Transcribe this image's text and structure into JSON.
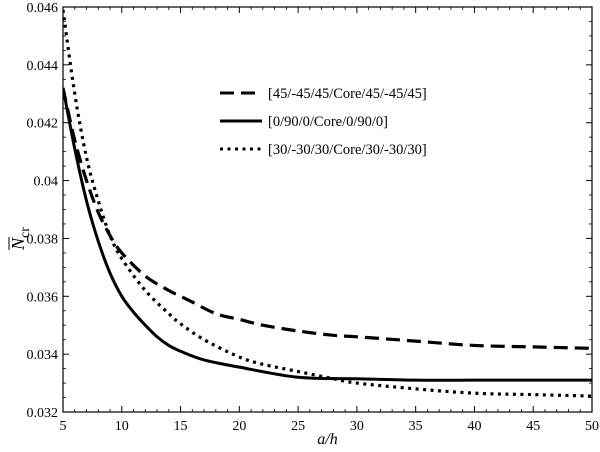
{
  "chart_data": {
    "type": "line",
    "title": "",
    "xlabel": "a/h",
    "ylabel_main": "N",
    "ylabel_sub": "cr",
    "xlim": [
      5,
      50
    ],
    "ylim": [
      0.032,
      0.046
    ],
    "xticks": [
      5,
      10,
      15,
      20,
      25,
      30,
      35,
      40,
      45,
      50
    ],
    "yticks": [
      0.032,
      0.034,
      0.036,
      0.038,
      0.04,
      0.042,
      0.044,
      0.046
    ],
    "ytick_labels": [
      "0.032",
      "0.034",
      "0.036",
      "0.038",
      "0.04",
      "0.042",
      "0.044",
      "0.046"
    ],
    "grid": false,
    "legend_position": "upper-right",
    "series": [
      {
        "name": "[45/-45/45/Core/45/-45/45]",
        "style": "dashed",
        "color": "#000000",
        "x": [
          5,
          6,
          7,
          8,
          9,
          10,
          12,
          14,
          15,
          16,
          18,
          20,
          22,
          25,
          28,
          30,
          35,
          40,
          45,
          50
        ],
        "y": [
          0.0432,
          0.0414,
          0.04,
          0.0389,
          0.0381,
          0.0375,
          0.0367,
          0.0362,
          0.036,
          0.0358,
          0.0354,
          0.0352,
          0.035,
          0.0348,
          0.03465,
          0.0346,
          0.03445,
          0.0343,
          0.03425,
          0.0342
        ]
      },
      {
        "name": "[0/90/0/Core/0/90/0]",
        "style": "solid",
        "color": "#000000",
        "x": [
          5,
          6,
          7,
          8,
          9,
          10,
          11,
          12,
          13,
          14,
          15,
          17,
          20,
          25,
          30,
          35,
          40,
          45,
          50
        ],
        "y": [
          0.0432,
          0.0411,
          0.0393,
          0.0379,
          0.0368,
          0.036,
          0.03545,
          0.035,
          0.0346,
          0.0343,
          0.0341,
          0.0338,
          0.03355,
          0.0332,
          0.03315,
          0.0331,
          0.0331,
          0.0331,
          0.0331
        ]
      },
      {
        "name": "[30/-30/30/Core/30/-30/30]",
        "style": "dotted",
        "color": "#000000",
        "x": [
          5,
          6,
          7,
          8,
          9,
          10,
          12,
          14,
          15,
          17,
          20,
          22,
          25,
          28,
          30,
          35,
          40,
          45,
          50
        ],
        "y": [
          0.0459,
          0.043,
          0.0408,
          0.0393,
          0.0381,
          0.0373,
          0.0362,
          0.0354,
          0.03505,
          0.0345,
          0.0339,
          0.03365,
          0.0334,
          0.03315,
          0.033,
          0.0328,
          0.03265,
          0.0326,
          0.03255
        ]
      }
    ]
  }
}
